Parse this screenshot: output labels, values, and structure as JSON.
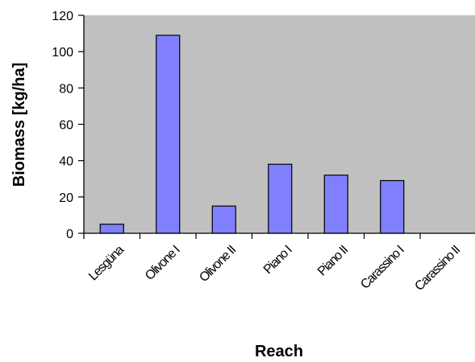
{
  "chart_data": {
    "type": "bar",
    "title": "",
    "xlabel": "Reach",
    "ylabel": "Biomass [kg/ha]",
    "categories": [
      "Lesgüna",
      "Olivone I",
      "Olivone II",
      "Piano I",
      "Piano II",
      "Carassino I",
      "Carassino II"
    ],
    "values": [
      5,
      109,
      15,
      38,
      32,
      29,
      0
    ],
    "ylim": [
      0,
      120
    ],
    "yticks": [
      0,
      20,
      40,
      60,
      80,
      100,
      120
    ],
    "grid": false,
    "legend": "none"
  },
  "colors": {
    "plot_area": "#c0c0c0",
    "bar_fill": "#8080ff",
    "bar_stroke": "#000000",
    "axis": "#000000"
  }
}
